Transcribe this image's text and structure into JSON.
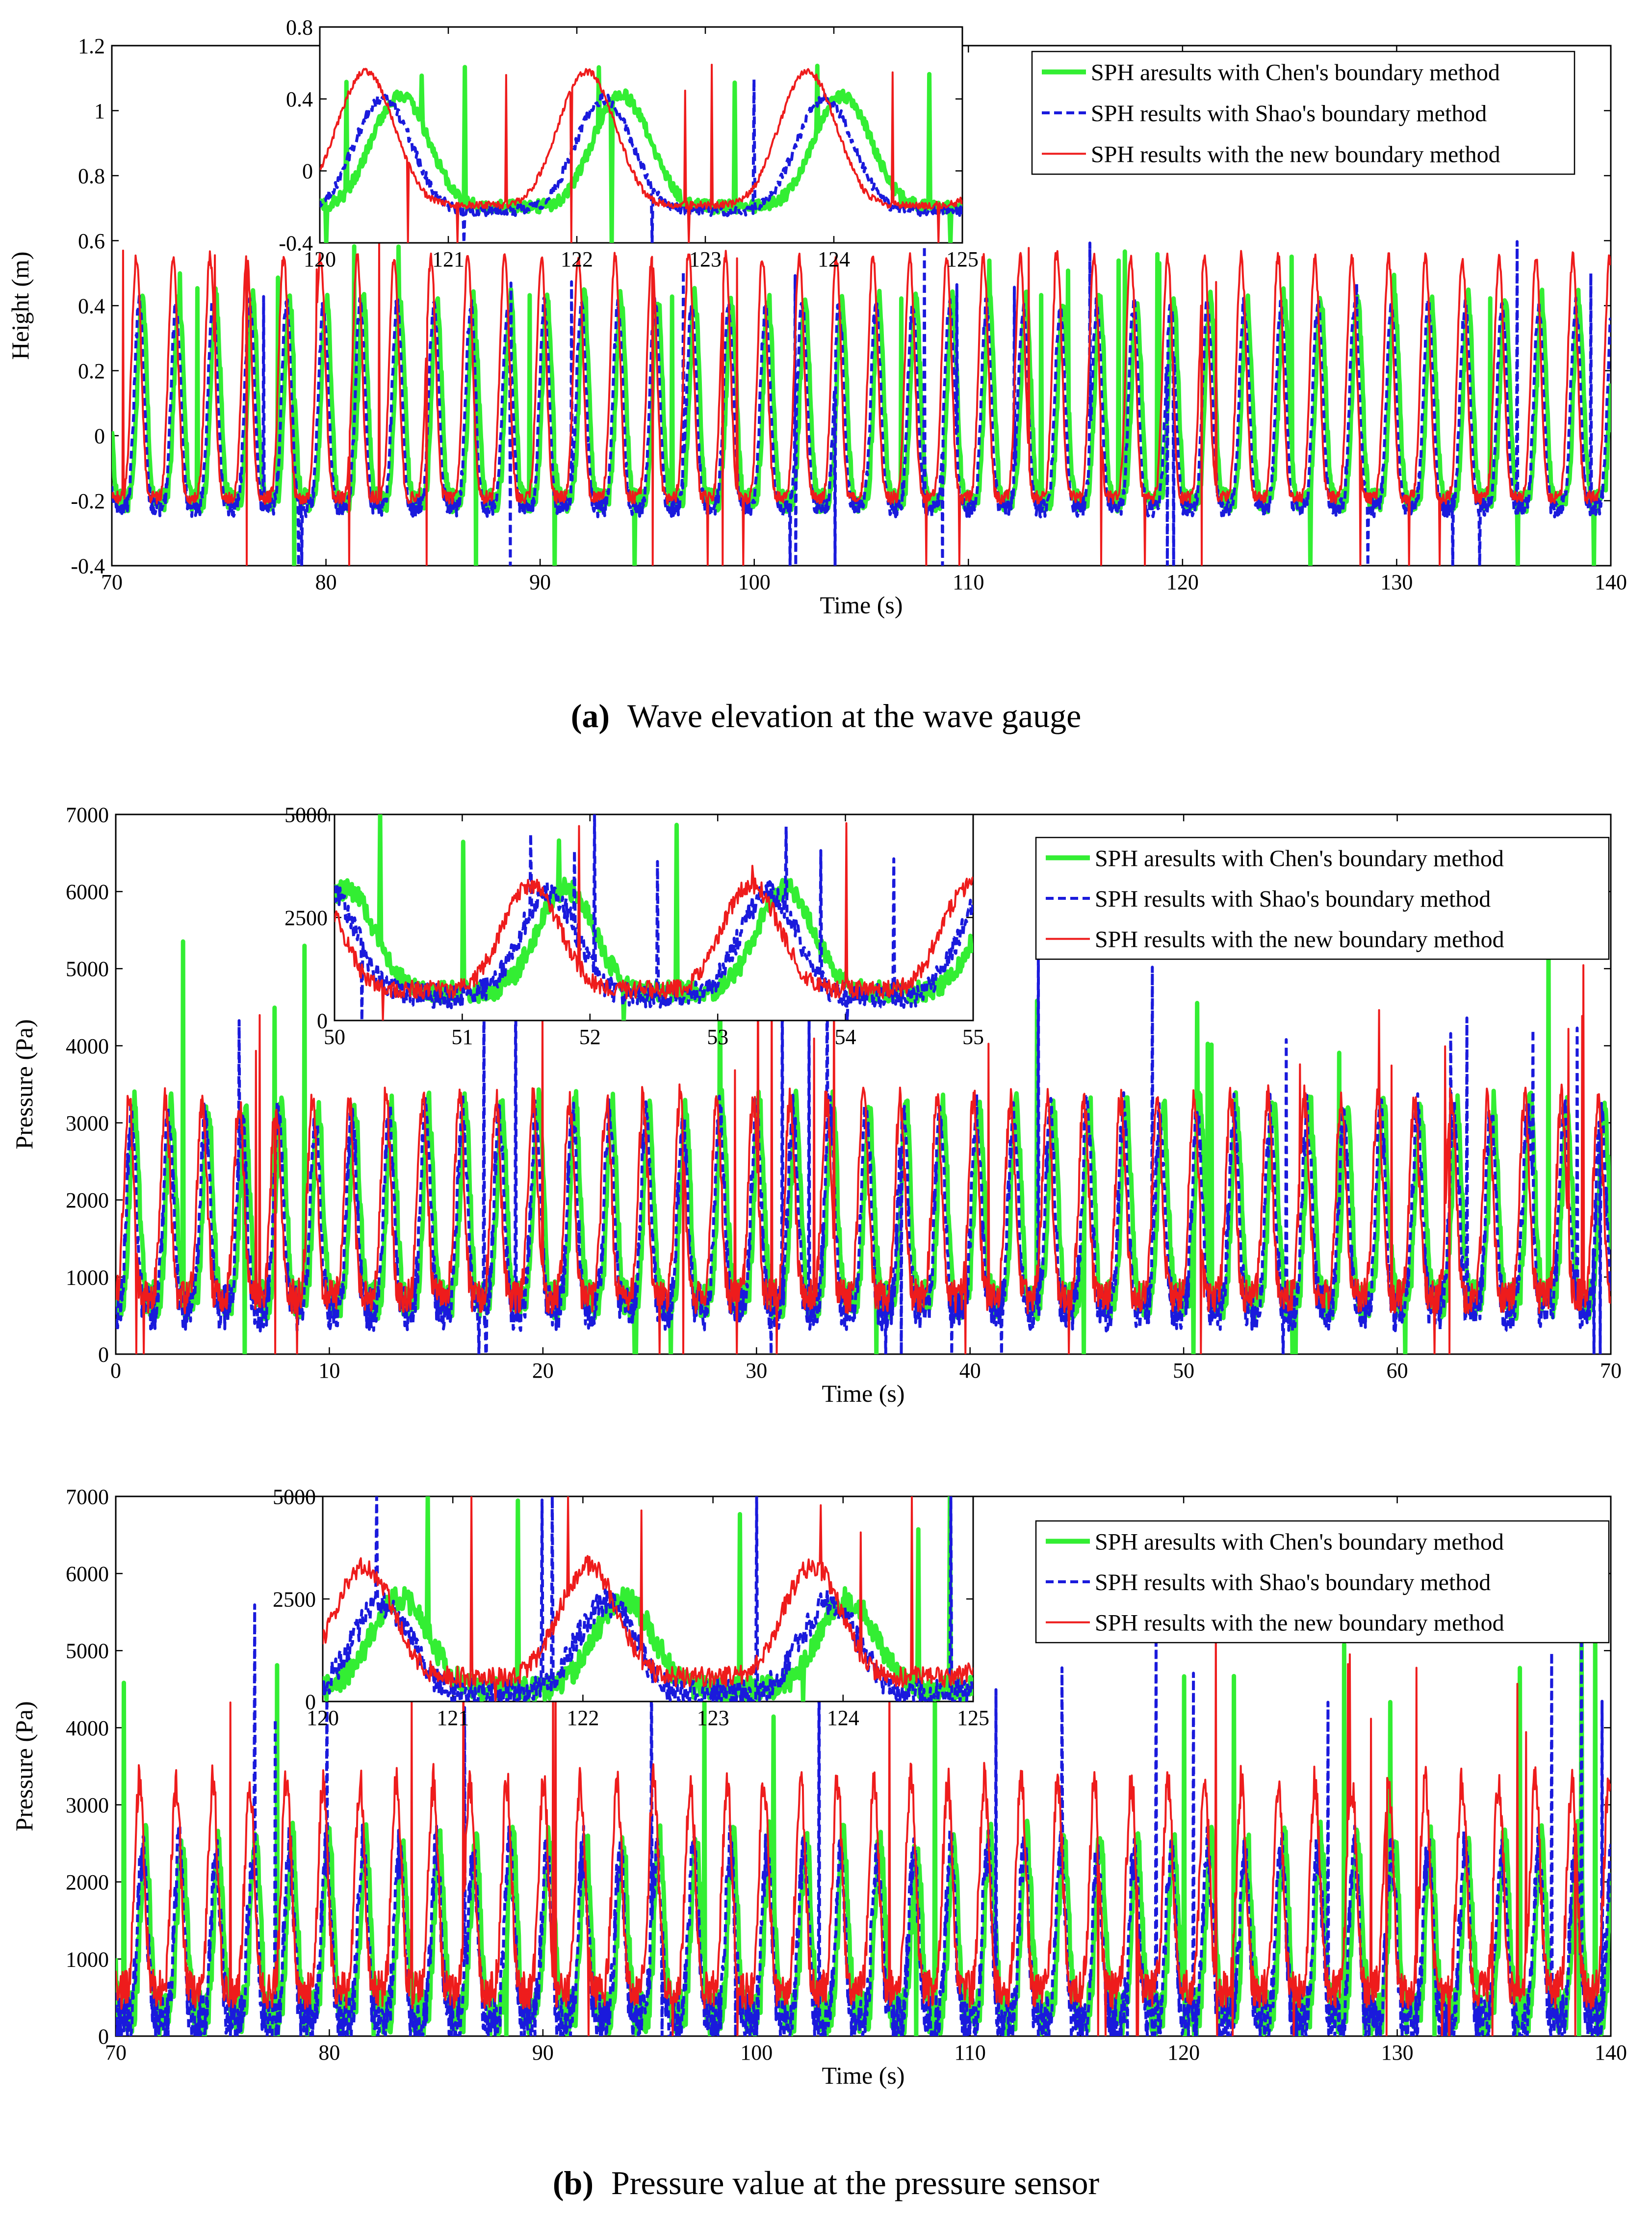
{
  "captions": {
    "a_tag": "(a)",
    "a_text": "Wave elevation at the wave gauge",
    "b_tag": "(b)",
    "b_text": "Pressure value at the pressure sensor"
  },
  "colors": {
    "chen": "#33ee33",
    "shao": "#1a1adc",
    "new": "#ee1c1c"
  },
  "legend": [
    "SPH aresults with Chen's boundary method",
    "SPH results with Shao's boundary method",
    "SPH results with the new boundary method"
  ],
  "chart_data": [
    {
      "id": "p1",
      "type": "line",
      "title": "",
      "xlabel": "Time (s)",
      "ylabel": "Height (m)",
      "xlim": [
        70,
        140
      ],
      "ylim": [
        -0.4,
        1.2
      ],
      "xticks": [
        70,
        80,
        90,
        100,
        110,
        120,
        130,
        140
      ],
      "yticks": [
        -0.4,
        -0.2,
        0,
        0.2,
        0.4,
        0.6,
        0.8,
        1,
        1.2
      ],
      "series": [
        {
          "name": "SPH aresults with Chen's boundary method",
          "color": "#33ee33",
          "period": 1.72,
          "peak": 0.42,
          "trough": -0.2,
          "noise": 0.035,
          "spike": 0.6
        },
        {
          "name": "SPH results with Shao's boundary method",
          "color": "#1a1adc",
          "period": 1.72,
          "peak": 0.4,
          "trough": -0.22,
          "noise": 0.03,
          "spike": 0.6
        },
        {
          "name": "SPH results with the new boundary method",
          "color": "#ee1c1c",
          "period": 1.72,
          "peak": 0.55,
          "trough": -0.19,
          "noise": 0.02,
          "spike": 0.62
        }
      ],
      "inset": {
        "xlim": [
          120,
          125
        ],
        "ylim": [
          -0.4,
          0.8
        ],
        "xticks": [
          120,
          121,
          122,
          123,
          124,
          125
        ],
        "yticks": [
          -0.4,
          0,
          0.4,
          0.8
        ]
      }
    },
    {
      "id": "p2",
      "type": "line",
      "title": "",
      "xlabel": "Time (s)",
      "ylabel": "Pressure (Pa)",
      "xlim": [
        0,
        70
      ],
      "ylim": [
        0,
        7000
      ],
      "xticks": [
        0,
        10,
        20,
        30,
        40,
        50,
        60,
        70
      ],
      "yticks": [
        0,
        1000,
        2000,
        3000,
        4000,
        5000,
        6000,
        7000
      ],
      "series": [
        {
          "name": "SPH aresults with Chen's boundary method",
          "color": "#33ee33",
          "period": 1.72,
          "peak": 3200,
          "trough": 700,
          "noise": 250,
          "spike": 5500
        },
        {
          "name": "SPH results with Shao's boundary method",
          "color": "#1a1adc",
          "period": 1.72,
          "peak": 3100,
          "trough": 600,
          "noise": 300,
          "spike": 5500
        },
        {
          "name": "SPH results with the new boundary method",
          "color": "#ee1c1c",
          "period": 1.72,
          "peak": 3300,
          "trough": 750,
          "noise": 220,
          "spike": 5200
        }
      ],
      "inset": {
        "xlim": [
          50,
          55
        ],
        "ylim": [
          0,
          5000
        ],
        "xticks": [
          50,
          51,
          52,
          53,
          54,
          55
        ],
        "yticks": [
          0,
          2500,
          5000
        ]
      }
    },
    {
      "id": "p3",
      "type": "line",
      "title": "",
      "xlabel": "Time (s)",
      "ylabel": "Pressure (Pa)",
      "xlim": [
        70,
        140
      ],
      "ylim": [
        0,
        7000
      ],
      "xticks": [
        70,
        80,
        90,
        100,
        110,
        120,
        130,
        140
      ],
      "yticks": [
        0,
        1000,
        2000,
        3000,
        4000,
        5000,
        6000,
        7000
      ],
      "series": [
        {
          "name": "SPH aresults with Chen's boundary method",
          "color": "#33ee33",
          "period": 1.72,
          "peak": 2500,
          "trough": 300,
          "noise": 300,
          "spike": 5800
        },
        {
          "name": "SPH results with Shao's boundary method",
          "color": "#1a1adc",
          "period": 1.72,
          "peak": 2400,
          "trough": 200,
          "noise": 350,
          "spike": 5800
        },
        {
          "name": "SPH results with the new boundary method",
          "color": "#ee1c1c",
          "period": 1.72,
          "peak": 3300,
          "trough": 600,
          "noise": 250,
          "spike": 5600
        }
      ],
      "inset": {
        "xlim": [
          120,
          125
        ],
        "ylim": [
          0,
          5000
        ],
        "xticks": [
          120,
          121,
          122,
          123,
          124,
          125
        ],
        "yticks": [
          0,
          2500,
          5000
        ]
      }
    }
  ]
}
